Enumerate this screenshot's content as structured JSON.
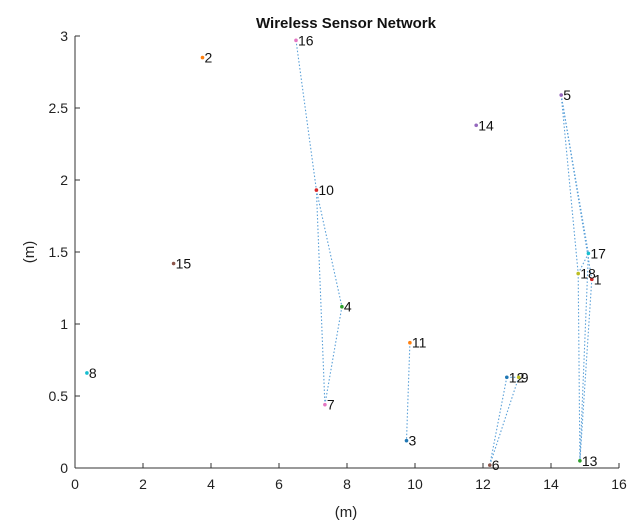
{
  "chart_data": {
    "type": "scatter",
    "title": "Wireless Sensor Network",
    "xlabel": "(m)",
    "ylabel": "(m)",
    "xlim": [
      0,
      16
    ],
    "ylim": [
      0,
      3
    ],
    "xticks": [
      0,
      2,
      4,
      6,
      8,
      10,
      12,
      14,
      16
    ],
    "yticks": [
      0,
      0.5,
      1,
      1.5,
      2,
      2.5,
      3
    ],
    "grid": false,
    "nodes": [
      {
        "id": "1",
        "x": 15.2,
        "y": 1.31
      },
      {
        "id": "2",
        "x": 3.75,
        "y": 2.85
      },
      {
        "id": "3",
        "x": 9.75,
        "y": 0.19
      },
      {
        "id": "4",
        "x": 7.85,
        "y": 1.12
      },
      {
        "id": "5",
        "x": 14.3,
        "y": 2.59
      },
      {
        "id": "6",
        "x": 12.2,
        "y": 0.02
      },
      {
        "id": "7",
        "x": 7.35,
        "y": 0.44
      },
      {
        "id": "8",
        "x": 0.35,
        "y": 0.66
      },
      {
        "id": "9",
        "x": 13.05,
        "y": 0.63
      },
      {
        "id": "10",
        "x": 7.1,
        "y": 1.93
      },
      {
        "id": "11",
        "x": 9.85,
        "y": 0.87
      },
      {
        "id": "12",
        "x": 12.7,
        "y": 0.63
      },
      {
        "id": "13",
        "x": 14.85,
        "y": 0.05
      },
      {
        "id": "14",
        "x": 11.8,
        "y": 2.38
      },
      {
        "id": "15",
        "x": 2.9,
        "y": 1.42
      },
      {
        "id": "16",
        "x": 6.5,
        "y": 2.97
      },
      {
        "id": "17",
        "x": 15.1,
        "y": 1.49
      },
      {
        "id": "18",
        "x": 14.8,
        "y": 1.35
      }
    ],
    "links": [
      [
        "16",
        "10"
      ],
      [
        "10",
        "4"
      ],
      [
        "10",
        "7"
      ],
      [
        "4",
        "7"
      ],
      [
        "11",
        "3"
      ],
      [
        "12",
        "6"
      ],
      [
        "9",
        "6"
      ],
      [
        "12",
        "9"
      ],
      [
        "5",
        "17"
      ],
      [
        "5",
        "18"
      ],
      [
        "5",
        "1"
      ],
      [
        "17",
        "18"
      ],
      [
        "18",
        "13"
      ],
      [
        "1",
        "13"
      ],
      [
        "17",
        "13"
      ]
    ],
    "colors": {
      "link": "#5aa0d8",
      "axis": "#333333",
      "nodes": [
        "#d62728",
        "#ff7f0e",
        "#1f77b4",
        "#2ca02c",
        "#9467bd",
        "#8c564b",
        "#e377c2",
        "#17becf",
        "#bcbd22"
      ]
    }
  }
}
